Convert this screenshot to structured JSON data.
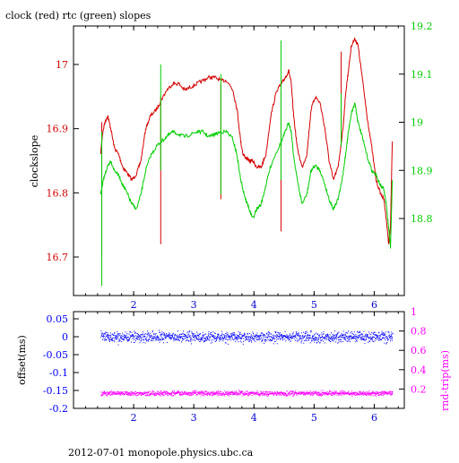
{
  "chart_data": [
    {
      "type": "line",
      "title": "clock (red) rtc (green) slopes",
      "xlim": [
        1.0,
        6.5
      ],
      "x_ticks": [
        "2",
        "3",
        "4",
        "5",
        "6"
      ],
      "left_axis": {
        "label": "clockslope",
        "ylim": [
          16.64,
          17.06
        ],
        "ticks": [
          "16.7",
          "16.8",
          "16.9",
          "17"
        ],
        "color": "#d40000"
      },
      "right_axis": {
        "label": "",
        "ylim": [
          18.64,
          19.2
        ],
        "ticks": [
          "18.8",
          "18.9",
          "19",
          "19.1",
          "19.2"
        ],
        "color": "#00cc00"
      },
      "series": [
        {
          "name": "clock",
          "color": "#d40000",
          "axis": "left",
          "x": [
            1.45,
            1.48,
            1.52,
            1.57,
            1.62,
            1.68,
            1.75,
            1.82,
            1.9,
            1.97,
            2.05,
            2.12,
            2.2,
            2.28,
            2.38,
            2.46,
            2.55,
            2.65,
            2.75,
            2.85,
            2.95,
            3.05,
            3.15,
            3.25,
            3.35,
            3.45,
            3.55,
            3.65,
            3.72,
            3.78,
            3.82,
            3.86,
            3.92,
            3.98,
            4.05,
            4.12,
            4.2,
            4.28,
            4.38,
            4.46,
            4.52,
            4.58,
            4.62,
            4.66,
            4.72,
            4.8,
            4.88,
            4.95,
            5.02,
            5.1,
            5.18,
            5.25,
            5.32,
            5.4,
            5.48,
            5.53,
            5.57,
            5.62,
            5.68,
            5.73,
            5.8,
            5.88,
            5.96,
            6.03,
            6.1,
            6.16,
            6.2,
            6.24,
            6.27,
            6.3
          ],
          "y": [
            16.86,
            16.89,
            16.91,
            16.92,
            16.9,
            16.87,
            16.86,
            16.84,
            16.83,
            16.82,
            16.83,
            16.85,
            16.9,
            16.92,
            16.93,
            16.945,
            16.96,
            16.97,
            16.97,
            16.96,
            16.965,
            16.97,
            16.975,
            16.98,
            16.98,
            16.975,
            16.975,
            16.96,
            16.93,
            16.88,
            16.86,
            16.855,
            16.85,
            16.85,
            16.84,
            16.84,
            16.86,
            16.92,
            16.96,
            16.97,
            16.98,
            16.99,
            16.97,
            16.92,
            16.87,
            16.84,
            16.86,
            16.93,
            16.95,
            16.94,
            16.9,
            16.85,
            16.82,
            16.84,
            16.9,
            16.96,
            16.99,
            17.03,
            17.04,
            17.03,
            16.98,
            16.92,
            16.87,
            16.82,
            16.8,
            16.79,
            16.76,
            16.72,
            16.75,
            16.88
          ]
        },
        {
          "name": "rtc",
          "color": "#00cc00",
          "axis": "right",
          "x": [
            1.45,
            1.48,
            1.52,
            1.57,
            1.62,
            1.68,
            1.75,
            1.82,
            1.9,
            1.97,
            2.05,
            2.12,
            2.2,
            2.28,
            2.38,
            2.46,
            2.55,
            2.65,
            2.75,
            2.85,
            2.95,
            3.05,
            3.15,
            3.25,
            3.35,
            3.45,
            3.55,
            3.65,
            3.72,
            3.78,
            3.82,
            3.86,
            3.92,
            3.98,
            4.05,
            4.12,
            4.2,
            4.28,
            4.38,
            4.46,
            4.52,
            4.58,
            4.62,
            4.66,
            4.72,
            4.8,
            4.88,
            4.95,
            5.02,
            5.1,
            5.18,
            5.25,
            5.32,
            5.4,
            5.48,
            5.53,
            5.57,
            5.62,
            5.68,
            5.73,
            5.8,
            5.88,
            5.96,
            6.03,
            6.1,
            6.16,
            6.2,
            6.24,
            6.27,
            6.3
          ],
          "y": [
            18.85,
            18.87,
            18.89,
            18.91,
            18.92,
            18.9,
            18.89,
            18.87,
            18.85,
            18.83,
            18.82,
            18.85,
            18.9,
            18.93,
            18.95,
            18.96,
            18.97,
            18.98,
            18.975,
            18.97,
            18.975,
            18.98,
            18.98,
            18.97,
            18.975,
            18.98,
            18.98,
            18.965,
            18.93,
            18.88,
            18.86,
            18.84,
            18.82,
            18.8,
            18.82,
            18.83,
            18.87,
            18.91,
            18.94,
            18.96,
            18.98,
            19.0,
            18.98,
            18.93,
            18.88,
            18.83,
            18.85,
            18.9,
            18.91,
            18.9,
            18.87,
            18.84,
            18.82,
            18.84,
            18.89,
            18.94,
            18.98,
            19.02,
            19.04,
            19.0,
            18.97,
            18.93,
            18.9,
            18.89,
            18.87,
            18.86,
            18.83,
            18.78,
            18.74,
            18.88
          ]
        }
      ]
    },
    {
      "type": "scatter",
      "title": "",
      "xlim": [
        1.0,
        6.5
      ],
      "x_ticks": [
        "2",
        "3",
        "4",
        "5",
        "6"
      ],
      "left_axis": {
        "label": "offset(ms)",
        "ylim": [
          -0.2,
          0.07
        ],
        "ticks": [
          "0.05",
          "0",
          "-0.05",
          "-0.1",
          "-0.15",
          "-0.2"
        ],
        "color": "#0000ff"
      },
      "right_axis": {
        "label": "rnd-trip(ms)",
        "ylim": [
          0.0,
          1.0
        ],
        "ticks": [
          "0.2",
          "0.4",
          "0.6",
          "0.8",
          "1"
        ],
        "color": "#ff00ff"
      },
      "series": [
        {
          "name": "offset",
          "color": "#0000ff",
          "axis": "left",
          "x_range": [
            1.45,
            6.3
          ],
          "center": 0.0,
          "spread": 0.012
        },
        {
          "name": "rnd-trip",
          "color": "#ff00ff",
          "axis": "right",
          "x_range": [
            1.45,
            6.3
          ],
          "center": 0.16,
          "spread": 0.02
        }
      ]
    }
  ],
  "footer": "2012-07-01  monopole.physics.ubc.ca"
}
